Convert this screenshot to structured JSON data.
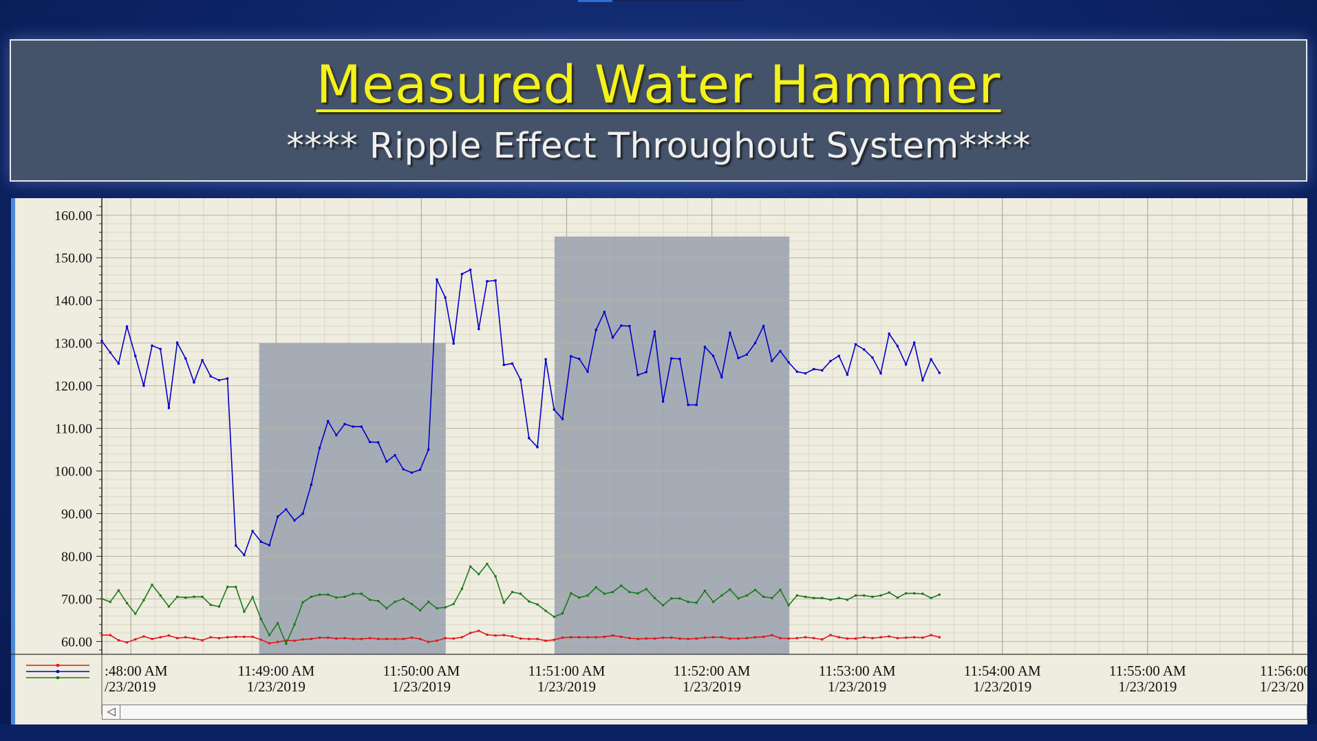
{
  "header": {
    "title": "Measured Water Hammer",
    "subtitle": "**** Ripple Effect Throughout System****"
  },
  "colors": {
    "title": "#f4f21a",
    "banner": "#44536a",
    "plot_bg": "#efece0",
    "highlight": "#8f9aab",
    "series_blue": "#0000c8",
    "series_green": "#1a7a1a",
    "series_red": "#e01818"
  },
  "chart_data": {
    "type": "line",
    "title": "Measured Water Hammer",
    "ylim": [
      57,
      164
    ],
    "y_ticks": [
      "60.00",
      "70.00",
      "80.00",
      "90.00",
      "100.00",
      "110.00",
      "120.00",
      "130.00",
      "140.00",
      "150.00",
      "160.00"
    ],
    "x_range_seconds": [
      -12,
      486
    ],
    "x_ticks": [
      {
        "t": 0,
        "time": ":48:00 AM",
        "date": "/23/2019"
      },
      {
        "t": 60,
        "time": "11:49:00 AM",
        "date": "1/23/2019"
      },
      {
        "t": 120,
        "time": "11:50:00 AM",
        "date": "1/23/2019"
      },
      {
        "t": 180,
        "time": "11:51:00 AM",
        "date": "1/23/2019"
      },
      {
        "t": 240,
        "time": "11:52:00 AM",
        "date": "1/23/2019"
      },
      {
        "t": 300,
        "time": "11:53:00 AM",
        "date": "1/23/2019"
      },
      {
        "t": 360,
        "time": "11:54:00 AM",
        "date": "1/23/2019"
      },
      {
        "t": 420,
        "time": "11:55:00 AM",
        "date": "1/23/2019"
      },
      {
        "t": 480,
        "time": "11:56:00",
        "date": "1/23/20"
      }
    ],
    "highlight_regions": [
      {
        "t0": 53,
        "t1": 130,
        "y0": 57,
        "y1": 130
      },
      {
        "t0": 175,
        "t1": 272,
        "y0": 57,
        "y1": 155
      }
    ],
    "legend": [
      "red series",
      "blue series",
      "green series"
    ],
    "series": [
      {
        "name": "blue",
        "color": "#0000c8",
        "t0": -12,
        "dt": 3.46,
        "values": [
          130.5,
          127.8,
          125.2,
          133.9,
          127,
          120,
          129.4,
          128.6,
          114.8,
          130.1,
          126.4,
          120.8,
          126,
          122.2,
          121.3,
          121.7,
          82.5,
          80.3,
          85.9,
          83.4,
          82.6,
          89.3,
          91,
          88.4,
          90,
          96.8,
          105.4,
          111.7,
          108.4,
          111,
          110.4,
          110.4,
          106.8,
          106.7,
          102.2,
          103.7,
          100.4,
          99.6,
          100.3,
          105,
          144.9,
          140.7,
          129.9,
          146.2,
          147.2,
          133.3,
          144.5,
          144.7,
          124.9,
          125.2,
          121.4,
          107.7,
          105.6,
          126.2,
          114.4,
          112.2,
          126.9,
          126.3,
          123.3,
          133.1,
          137.3,
          131.3,
          134.1,
          134,
          122.5,
          123.2,
          132.7,
          116.3,
          126.4,
          126.3,
          115.5,
          115.5,
          129.1,
          127,
          122,
          132.4,
          126.5,
          127.3,
          130,
          134,
          125.8,
          128.1,
          125.5,
          123.3,
          122.9,
          123.9,
          123.6,
          125.8,
          127,
          122.6,
          129.7,
          128.5,
          126.6,
          122.9,
          132.2,
          129.3,
          125,
          130.1,
          121.3,
          126.2,
          123
        ]
      },
      {
        "name": "green",
        "color": "#1a7a1a",
        "t0": -12,
        "dt": 3.46,
        "values": [
          70,
          69.3,
          72,
          69,
          66.5,
          69.7,
          73.3,
          70.8,
          68.2,
          70.5,
          70.3,
          70.5,
          70.5,
          68.6,
          68.2,
          72.8,
          72.8,
          67,
          70.4,
          65.3,
          61.5,
          64.3,
          59.5,
          64,
          69.2,
          70.5,
          71,
          71,
          70.3,
          70.5,
          71.2,
          71.2,
          69.8,
          69.5,
          67.8,
          69.3,
          70,
          68.8,
          67.3,
          69.3,
          67.8,
          68,
          68.8,
          72.4,
          77.6,
          75.8,
          78.2,
          75.3,
          69.1,
          71.6,
          71.2,
          69.4,
          68.7,
          67.2,
          65.8,
          66.6,
          71.3,
          70.3,
          70.8,
          72.7,
          71.2,
          71.6,
          73.1,
          71.6,
          71.3,
          72.3,
          70.2,
          68.5,
          70.1,
          70.1,
          69.3,
          69.1,
          71.9,
          69.3,
          70.8,
          72.2,
          70.1,
          70.8,
          72.1,
          70.5,
          70.2,
          72.1,
          68.5,
          70.8,
          70.5,
          70.2,
          70.2,
          69.8,
          70.2,
          69.8,
          70.8,
          70.8,
          70.5,
          70.8,
          71.5,
          70.3,
          71.3,
          71.3,
          71.2,
          70.2,
          71
        ]
      },
      {
        "name": "red",
        "color": "#e01818",
        "t0": -12,
        "dt": 3.46,
        "values": [
          61.5,
          61.5,
          60.3,
          59.8,
          60.5,
          61.2,
          60.6,
          61,
          61.4,
          60.8,
          61,
          60.7,
          60.3,
          61,
          60.8,
          61,
          61.1,
          61.1,
          61.1,
          60.4,
          59.6,
          59.9,
          60.2,
          60.2,
          60.5,
          60.6,
          60.9,
          60.9,
          60.7,
          60.8,
          60.6,
          60.6,
          60.8,
          60.6,
          60.6,
          60.6,
          60.6,
          60.9,
          60.6,
          59.9,
          60.2,
          60.8,
          60.7,
          61,
          62,
          62.5,
          61.6,
          61.4,
          61.5,
          61.2,
          60.7,
          60.6,
          60.6,
          60.2,
          60.4,
          60.9,
          61,
          61,
          61,
          61,
          61.1,
          61.4,
          61.1,
          60.8,
          60.6,
          60.7,
          60.7,
          60.9,
          60.9,
          60.7,
          60.6,
          60.7,
          60.9,
          61,
          61,
          60.7,
          60.7,
          60.8,
          61,
          61.1,
          61.5,
          60.8,
          60.7,
          60.8,
          61,
          60.8,
          60.5,
          61.5,
          61,
          60.7,
          60.7,
          61,
          60.8,
          61,
          61.2,
          60.8,
          60.9,
          61,
          60.9,
          61.5,
          61
        ]
      }
    ]
  }
}
